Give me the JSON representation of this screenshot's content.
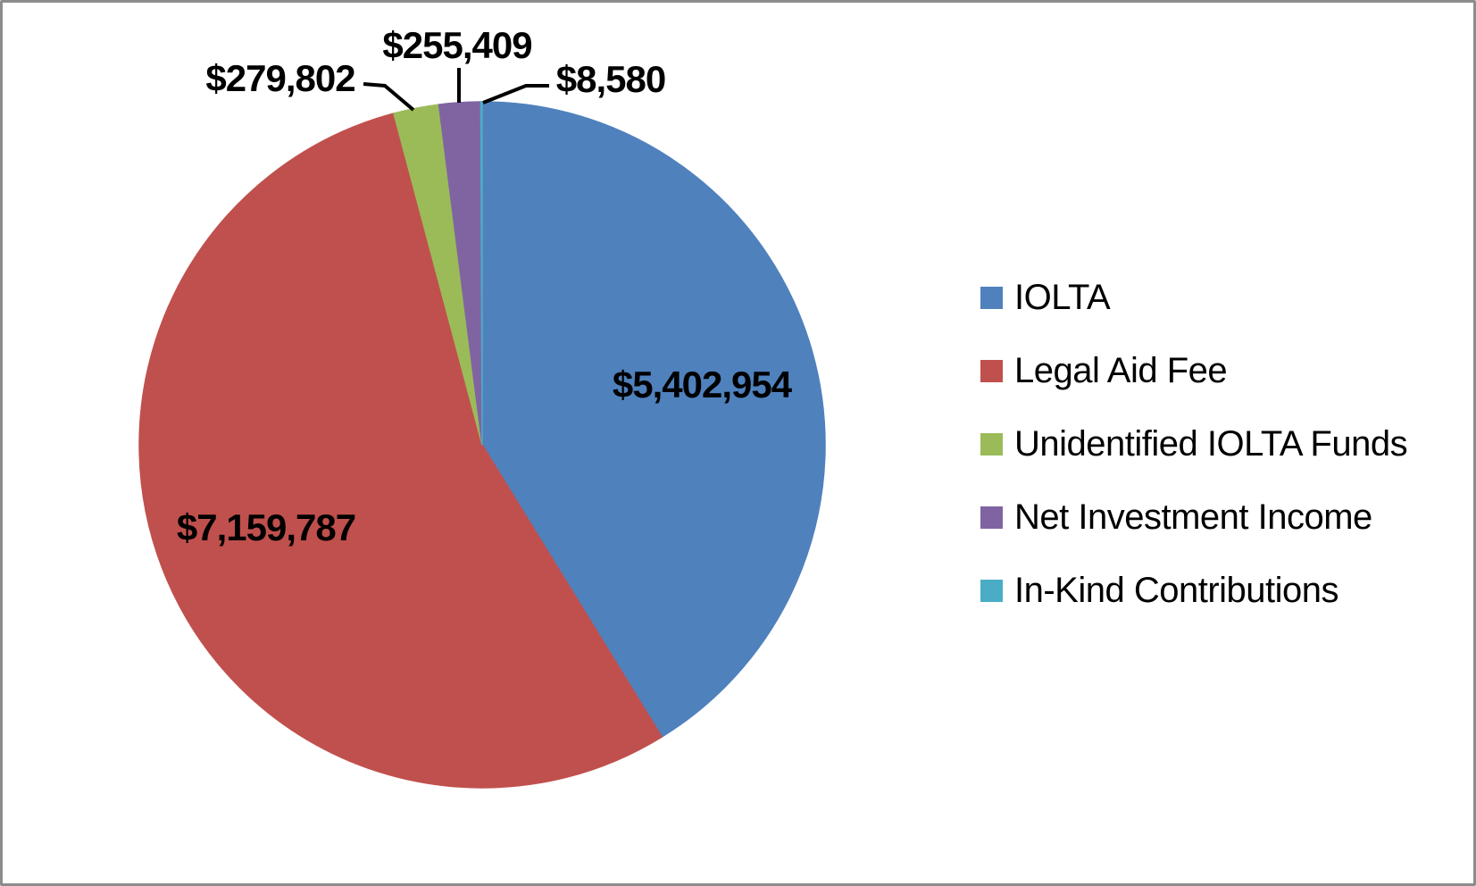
{
  "frame": {
    "background_color": "#ffffff",
    "border_color": "#8c8c8c"
  },
  "chart_data": {
    "type": "pie",
    "title": "",
    "legend_position": "right",
    "start_angle_deg": 0,
    "direction": "clockwise",
    "total": 13106532,
    "series": [
      {
        "name": "IOLTA",
        "value": 5402954,
        "label": "$5,402,954",
        "color": "#4F81BD"
      },
      {
        "name": "Legal Aid Fee",
        "value": 7159787,
        "label": "$7,159,787",
        "color": "#C0504D"
      },
      {
        "name": "Unidentified IOLTA Funds",
        "value": 279802,
        "label": "$279,802",
        "color": "#9BBB59"
      },
      {
        "name": "Net Investment Income",
        "value": 255409,
        "label": "$255,409",
        "color": "#8064A2"
      },
      {
        "name": "In-Kind Contributions",
        "value": 8580,
        "label": "$8,580",
        "color": "#4BACC6"
      }
    ]
  }
}
